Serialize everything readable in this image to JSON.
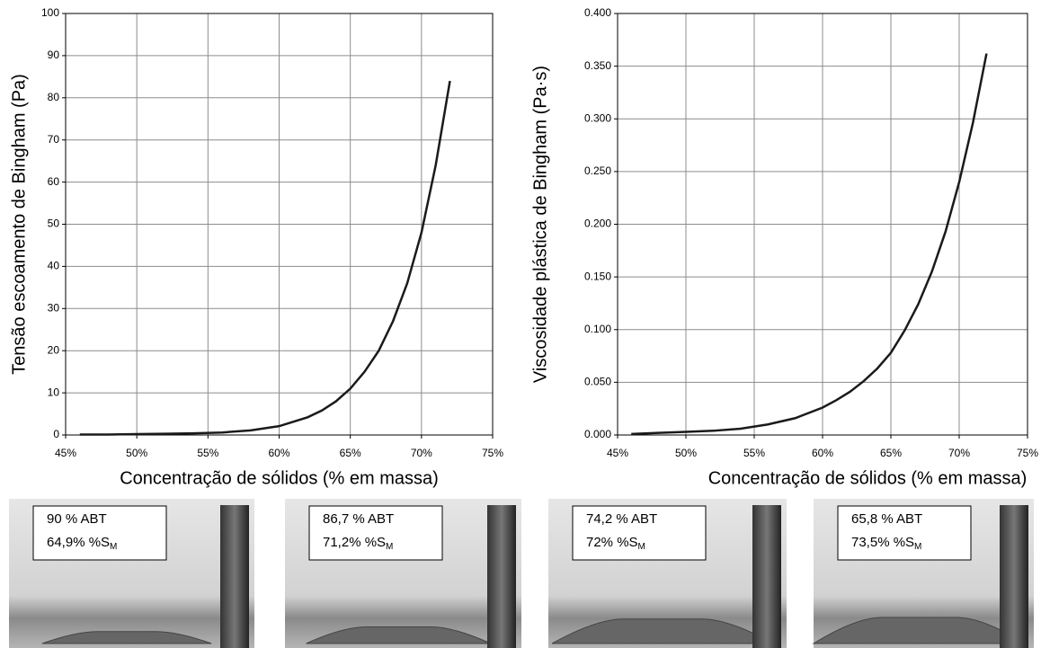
{
  "chart_data": [
    {
      "type": "line",
      "xlabel": "Concentração de sólidos (% em massa)",
      "ylabel": "Tensão escoamento de Bingham (Pa)",
      "x": [
        46,
        48,
        50,
        52,
        54,
        56,
        58,
        60,
        62,
        63,
        64,
        65,
        66,
        67,
        68,
        69,
        70,
        71,
        72
      ],
      "series": [
        {
          "color": "#1a1a1a",
          "values": [
            0.1,
            0.1,
            0.2,
            0.3,
            0.4,
            0.6,
            1.1,
            2.1,
            4.2,
            5.8,
            8,
            11,
            15,
            20,
            27,
            36,
            48,
            64,
            84
          ]
        }
      ],
      "xlim": [
        45,
        75
      ],
      "xticks": [
        {
          "value": 45,
          "label": "45%"
        },
        {
          "value": 50,
          "label": "50%"
        },
        {
          "value": 55,
          "label": "55%"
        },
        {
          "value": 60,
          "label": "60%"
        },
        {
          "value": 65,
          "label": "65%"
        },
        {
          "value": 70,
          "label": "70%"
        },
        {
          "value": 75,
          "label": "75%"
        }
      ],
      "ylim": [
        0,
        100
      ],
      "yticks": [
        0,
        10,
        20,
        30,
        40,
        50,
        60,
        70,
        80,
        90,
        100
      ],
      "grid": true
    },
    {
      "type": "line",
      "xlabel": "Concentração de sólidos (% em massa)",
      "ylabel": "Viscosidade plástica de Bingham (Pa·s)",
      "x": [
        46,
        48,
        50,
        52,
        54,
        56,
        58,
        60,
        61,
        62,
        63,
        64,
        65,
        66,
        67,
        68,
        69,
        70,
        71,
        72
      ],
      "series": [
        {
          "color": "#1a1a1a",
          "values": [
            0.001,
            0.002,
            0.003,
            0.004,
            0.006,
            0.01,
            0.016,
            0.026,
            0.033,
            0.041,
            0.051,
            0.063,
            0.078,
            0.099,
            0.124,
            0.155,
            0.193,
            0.24,
            0.296,
            0.362
          ]
        }
      ],
      "xlim": [
        45,
        75
      ],
      "xticks": [
        {
          "value": 45,
          "label": "45%"
        },
        {
          "value": 50,
          "label": "50%"
        },
        {
          "value": 55,
          "label": "55%"
        },
        {
          "value": 60,
          "label": "60%"
        },
        {
          "value": 65,
          "label": "65%"
        },
        {
          "value": 70,
          "label": "70%"
        },
        {
          "value": 75,
          "label": "75%"
        }
      ],
      "ylim": [
        0,
        0.4
      ],
      "yticks": [
        {
          "value": 0,
          "label": "0.000"
        },
        {
          "value": 0.05,
          "label": "0.050"
        },
        {
          "value": 0.1,
          "label": "0.100"
        },
        {
          "value": 0.15,
          "label": "0.150"
        },
        {
          "value": 0.2,
          "label": "0.200"
        },
        {
          "value": 0.25,
          "label": "0.250"
        },
        {
          "value": 0.3,
          "label": "0.300"
        },
        {
          "value": 0.35,
          "label": "0.350"
        },
        {
          "value": 0.4,
          "label": "0.400"
        }
      ],
      "grid": true
    }
  ],
  "photos": [
    {
      "line1": "90 % ABT",
      "line2": "64,9% %S",
      "sub": "M"
    },
    {
      "line1": "86,7 % ABT",
      "line2": "71,2% %S",
      "sub": "M"
    },
    {
      "line1": "74,2 % ABT",
      "line2": "72% %S",
      "sub": "M"
    },
    {
      "line1": "65,8 % ABT",
      "line2": "73,5% %S",
      "sub": "M"
    }
  ]
}
